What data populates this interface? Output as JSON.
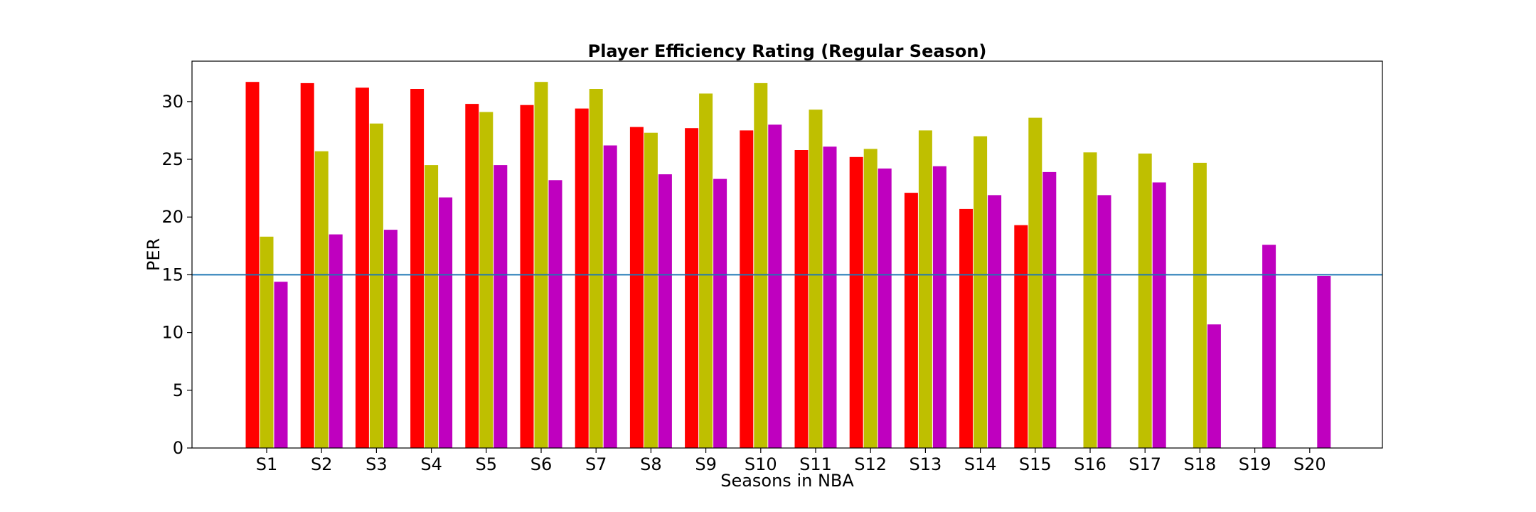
{
  "chart_data": {
    "type": "bar",
    "title": "Player Efficiency Rating (Regular Season)",
    "xlabel": "Seasons in NBA",
    "ylabel": "PER",
    "ylim": [
      0,
      33.5
    ],
    "yticks": [
      0,
      5,
      10,
      15,
      20,
      25,
      30
    ],
    "categories": [
      "S1",
      "S2",
      "S3",
      "S4",
      "S5",
      "S6",
      "S7",
      "S8",
      "S9",
      "S10",
      "S11",
      "S12",
      "S13",
      "S14",
      "S15",
      "S16",
      "S17",
      "S18",
      "S19",
      "S20"
    ],
    "series": [
      {
        "color": "#ff0000",
        "values": [
          31.7,
          31.6,
          31.2,
          31.1,
          29.8,
          29.7,
          29.4,
          27.8,
          27.7,
          27.5,
          25.8,
          25.2,
          22.1,
          20.7,
          19.3,
          null,
          null,
          null,
          null,
          null
        ]
      },
      {
        "color": "#bfbf00",
        "values": [
          18.3,
          25.7,
          28.1,
          24.5,
          29.1,
          31.7,
          31.1,
          27.3,
          30.7,
          31.6,
          29.3,
          25.9,
          27.5,
          27.0,
          28.6,
          25.6,
          25.5,
          24.7,
          null,
          null
        ]
      },
      {
        "color": "#bf00bf",
        "values": [
          14.4,
          18.5,
          18.9,
          21.7,
          24.5,
          23.2,
          26.2,
          23.7,
          23.3,
          28.0,
          26.1,
          24.2,
          24.4,
          21.9,
          23.9,
          21.9,
          23.0,
          10.7,
          17.6,
          14.9
        ]
      }
    ],
    "reference_line": {
      "value": 15,
      "color": "#1f77b4"
    },
    "grid": false,
    "legend": "none"
  }
}
